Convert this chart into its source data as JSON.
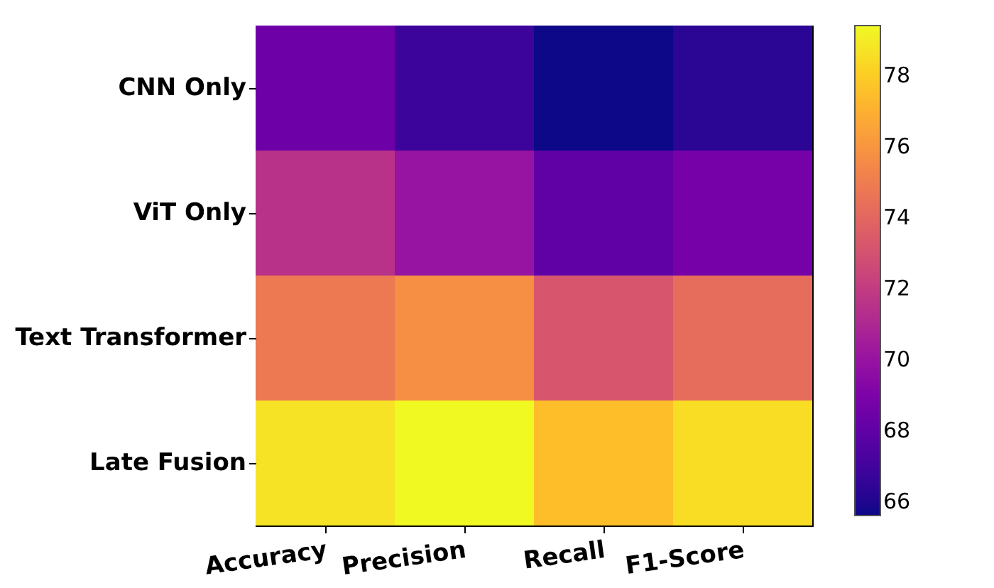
{
  "chart_data": {
    "type": "heatmap",
    "categories": [
      "Accuracy",
      "Precision",
      "Recall",
      "F1-Score"
    ],
    "y_categories": [
      "CNN Only",
      "ViT Only",
      "Text Transformer",
      "Late Fusion"
    ],
    "cells": [
      [
        68.5,
        66.8,
        65.6,
        66.3
      ],
      [
        71.5,
        70.0,
        68.0,
        68.8
      ],
      [
        74.8,
        75.7,
        73.2,
        74.3
      ],
      [
        78.7,
        79.4,
        77.5,
        78.5
      ]
    ],
    "clim": [
      65.6,
      79.4
    ],
    "cticks": [
      66,
      68,
      70,
      72,
      74,
      76,
      78
    ]
  }
}
